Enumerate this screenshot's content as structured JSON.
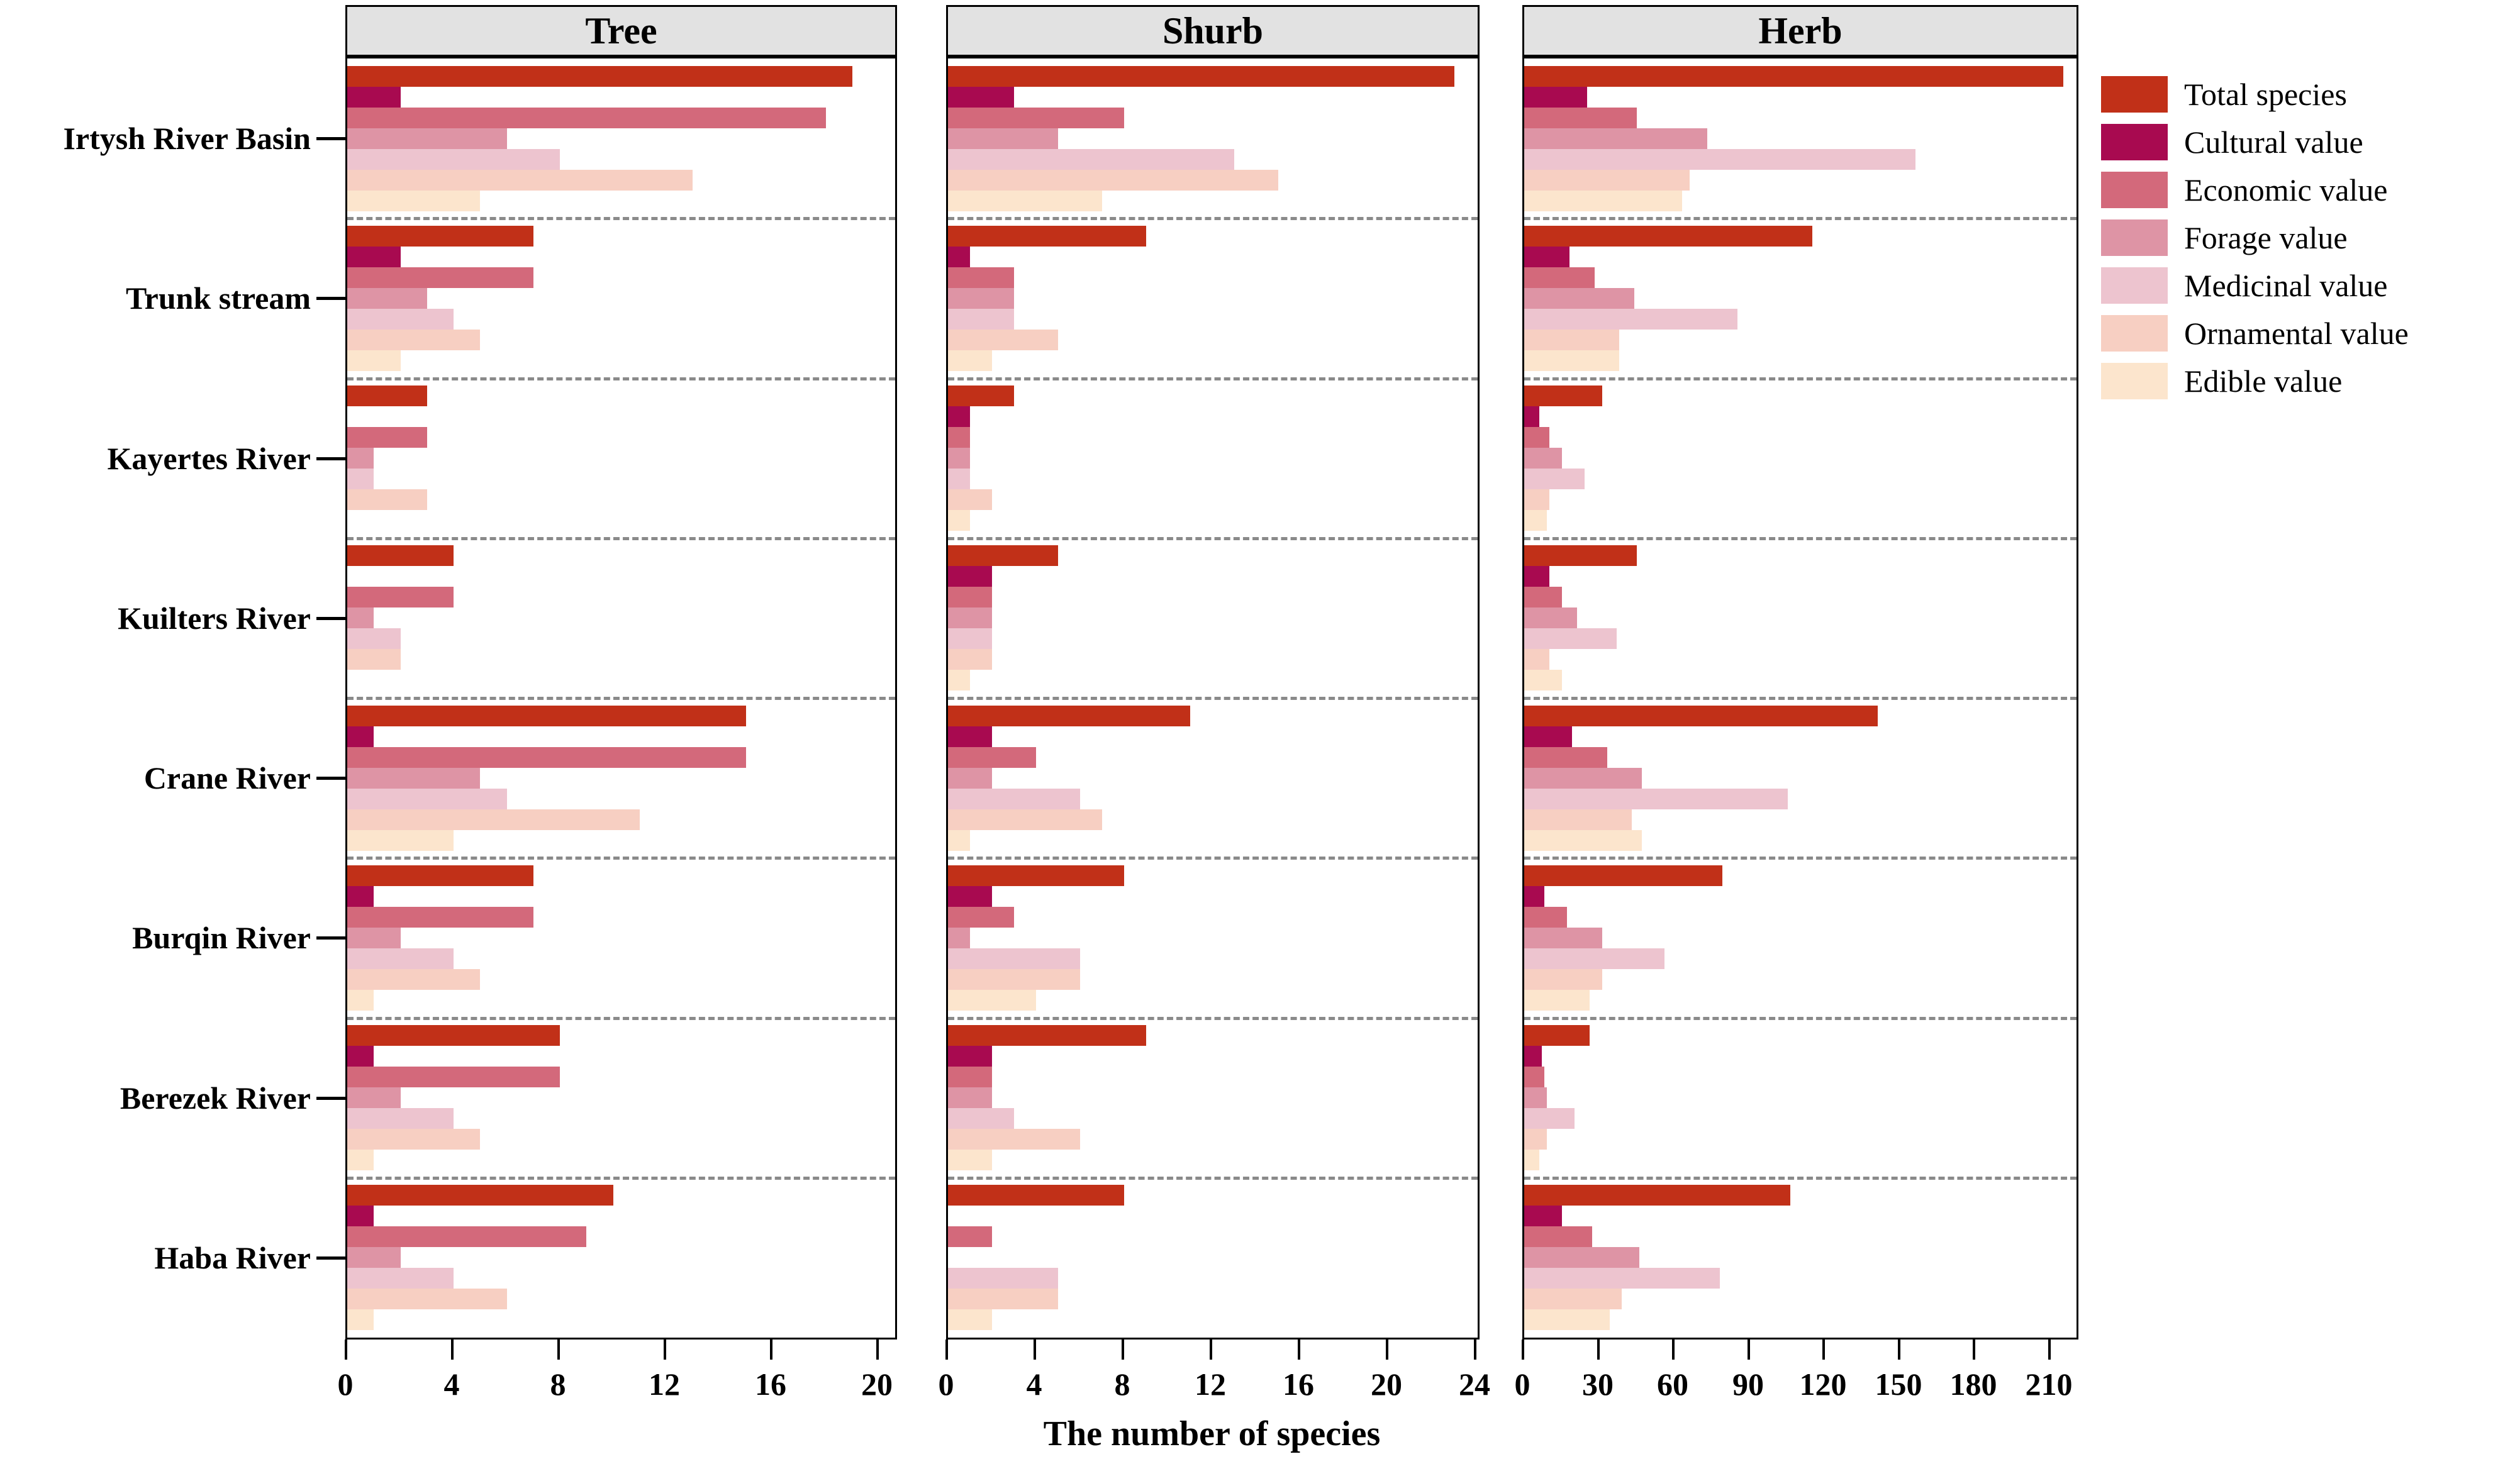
{
  "xlabel": "The number of species",
  "legend": {
    "items": [
      {
        "label": "Total species",
        "color": "#c13018"
      },
      {
        "label": "Cultural value",
        "color": "#a80a50"
      },
      {
        "label": "Economic value",
        "color": "#d3697b"
      },
      {
        "label": "Forage value",
        "color": "#de94a5"
      },
      {
        "label": "Medicinal value",
        "color": "#edc4cf"
      },
      {
        "label": "Ornamental value",
        "color": "#f7cfc2"
      },
      {
        "label": "Edible value",
        "color": "#fce5cd"
      }
    ]
  },
  "categories": [
    "Irtysh River Basin",
    "Trunk stream",
    "Kayertes River",
    "Kuilters River",
    "Crane River",
    "Burqin River",
    "Berezek River",
    "Haba River"
  ],
  "chart_data": [
    {
      "type": "bar",
      "orientation": "horizontal",
      "title": "Tree",
      "xlabel": "The number of species",
      "xlim": [
        0,
        20.8
      ],
      "xticks": [
        0,
        4,
        8,
        12,
        16,
        20
      ],
      "grid": false,
      "legend_position": "right-of-last-panel",
      "categories": [
        "Irtysh River Basin",
        "Trunk stream",
        "Kayertes River",
        "Kuilters River",
        "Crane River",
        "Burqin River",
        "Berezek River",
        "Haba River"
      ],
      "series": [
        {
          "name": "Total species",
          "color": "#c13018",
          "values": [
            19,
            7,
            3,
            4,
            15,
            7,
            8,
            10
          ]
        },
        {
          "name": "Cultural value",
          "color": "#a80a50",
          "values": [
            2,
            2,
            0,
            0,
            1,
            1,
            1,
            1
          ]
        },
        {
          "name": "Economic value",
          "color": "#d3697b",
          "values": [
            18,
            7,
            3,
            4,
            15,
            7,
            8,
            9
          ]
        },
        {
          "name": "Forage value",
          "color": "#de94a5",
          "values": [
            6,
            3,
            1,
            1,
            5,
            2,
            2,
            2
          ]
        },
        {
          "name": "Medicinal value",
          "color": "#edc4cf",
          "values": [
            8,
            4,
            1,
            2,
            6,
            4,
            4,
            4
          ]
        },
        {
          "name": "Ornamental value",
          "color": "#f7cfc2",
          "values": [
            13,
            5,
            3,
            2,
            11,
            5,
            5,
            6
          ]
        },
        {
          "name": "Edible value",
          "color": "#fce5cd",
          "values": [
            5,
            2,
            0,
            0,
            4,
            1,
            1,
            1
          ]
        }
      ]
    },
    {
      "type": "bar",
      "orientation": "horizontal",
      "title": "Shurb",
      "xlabel": "The number of species",
      "xlim": [
        0,
        24.3
      ],
      "xticks": [
        0,
        4,
        8,
        12,
        16,
        20,
        24
      ],
      "grid": false,
      "categories": [
        "Irtysh River Basin",
        "Trunk stream",
        "Kayertes River",
        "Kuilters River",
        "Crane River",
        "Burqin River",
        "Berezek River",
        "Haba River"
      ],
      "series": [
        {
          "name": "Total species",
          "color": "#c13018",
          "values": [
            23,
            9,
            3,
            5,
            11,
            8,
            9,
            8
          ]
        },
        {
          "name": "Cultural value",
          "color": "#a80a50",
          "values": [
            3,
            1,
            1,
            2,
            2,
            2,
            2,
            0
          ]
        },
        {
          "name": "Economic value",
          "color": "#d3697b",
          "values": [
            8,
            3,
            1,
            2,
            4,
            3,
            2,
            2
          ]
        },
        {
          "name": "Forage value",
          "color": "#de94a5",
          "values": [
            5,
            3,
            1,
            2,
            2,
            1,
            2,
            0
          ]
        },
        {
          "name": "Medicinal value",
          "color": "#edc4cf",
          "values": [
            13,
            3,
            1,
            2,
            6,
            6,
            3,
            5
          ]
        },
        {
          "name": "Ornamental value",
          "color": "#f7cfc2",
          "values": [
            15,
            5,
            2,
            2,
            7,
            6,
            6,
            5
          ]
        },
        {
          "name": "Edible value",
          "color": "#fce5cd",
          "values": [
            7,
            2,
            1,
            1,
            1,
            4,
            2,
            2
          ]
        }
      ]
    },
    {
      "type": "bar",
      "orientation": "horizontal",
      "title": "Herb",
      "xlabel": "The number of species",
      "xlim": [
        0,
        222
      ],
      "xticks": [
        0,
        30,
        60,
        90,
        120,
        150,
        180,
        210
      ],
      "grid": false,
      "categories": [
        "Irtysh River Basin",
        "Trunk stream",
        "Kayertes River",
        "Kuilters River",
        "Crane River",
        "Burqin River",
        "Berezek River",
        "Haba River"
      ],
      "series": [
        {
          "name": "Total species",
          "color": "#c13018",
          "values": [
            215,
            115,
            31,
            45,
            141,
            79,
            26,
            106
          ]
        },
        {
          "name": "Cultural value",
          "color": "#a80a50",
          "values": [
            25,
            18,
            6,
            10,
            19,
            8,
            7,
            15
          ]
        },
        {
          "name": "Economic value",
          "color": "#d3697b",
          "values": [
            45,
            28,
            10,
            15,
            33,
            17,
            8,
            27
          ]
        },
        {
          "name": "Forage value",
          "color": "#de94a5",
          "values": [
            73,
            44,
            15,
            21,
            47,
            31,
            9,
            46
          ]
        },
        {
          "name": "Medicinal value",
          "color": "#edc4cf",
          "values": [
            156,
            85,
            24,
            37,
            105,
            56,
            20,
            78
          ]
        },
        {
          "name": "Ornamental value",
          "color": "#f7cfc2",
          "values": [
            66,
            38,
            10,
            10,
            43,
            31,
            9,
            39
          ]
        },
        {
          "name": "Edible value",
          "color": "#fce5cd",
          "values": [
            63,
            38,
            9,
            15,
            47,
            26,
            6,
            34
          ]
        }
      ]
    }
  ]
}
